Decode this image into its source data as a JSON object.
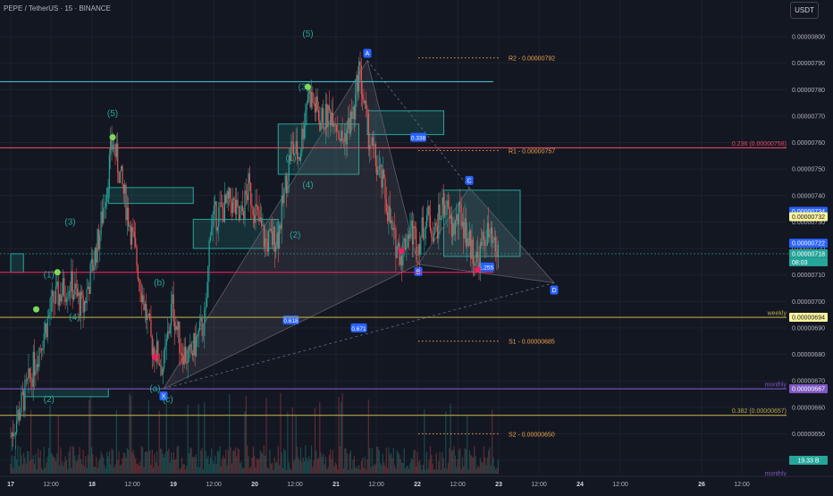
{
  "header": {
    "symbol_title": "PEPE / TetherUS · 15 · BINANCE",
    "currency_button": "USDT"
  },
  "colors": {
    "background": "#131722",
    "up_candle": "#26a69a",
    "down_candle": "#ef5350",
    "wave_label": "#26a69a",
    "harmonic_fill": "#2a2e39",
    "pivot_dots": "#89a0b8"
  },
  "chart_data": {
    "type": "candlestick",
    "price_axis": {
      "min": 6.4e-06,
      "max": 8e-06,
      "ticks": [
        "0.00000800",
        "0.00000790",
        "0.00000780",
        "0.00000770",
        "0.00000760",
        "0.00000750",
        "0.00000740",
        "0.00000730",
        "0.00000720",
        "0.00000710",
        "0.00000700",
        "0.00000690",
        "0.00000680",
        "0.00000670",
        "0.00000660",
        "0.00000650",
        "0.00000640"
      ]
    },
    "time_axis": {
      "labels": [
        "17",
        "12:00",
        "18",
        "12:00",
        "19",
        "12:00",
        "20",
        "12:00",
        "21",
        "12:00",
        "22",
        "12:00",
        "23",
        "12:00",
        "24",
        "12:00",
        "26",
        "12:00"
      ],
      "bold_labels": [
        "17",
        "18",
        "19",
        "20",
        "21",
        "22",
        "23",
        "24",
        "26"
      ]
    },
    "price_path": [
      [
        0,
        6.49e-06
      ],
      [
        4,
        6.68e-06
      ],
      [
        10,
        7e-06
      ],
      [
        14,
        7.07e-06
      ],
      [
        17,
        6.97e-06
      ],
      [
        21,
        7.26e-06
      ],
      [
        24,
        7.61e-06
      ],
      [
        28,
        7.3e-06
      ],
      [
        33,
        6.85e-06
      ],
      [
        36,
        6.75e-06
      ],
      [
        38,
        6.99e-06
      ],
      [
        40,
        6.83e-06
      ],
      [
        42,
        6.78e-06
      ],
      [
        46,
        6.94e-06
      ],
      [
        47,
        7.3e-06
      ],
      [
        52,
        7.38e-06
      ],
      [
        54,
        7.3e-06
      ],
      [
        56,
        7.43e-06
      ],
      [
        60,
        7.22e-06
      ],
      [
        63,
        7.25e-06
      ],
      [
        66,
        7.58e-06
      ],
      [
        68,
        7.55e-06
      ],
      [
        70,
        7.8e-06
      ],
      [
        73,
        7.68e-06
      ],
      [
        76,
        7.72e-06
      ],
      [
        78,
        7.6e-06
      ],
      [
        81,
        7.72e-06
      ],
      [
        82,
        7.89e-06
      ],
      [
        84,
        7.65e-06
      ],
      [
        86,
        7.52e-06
      ],
      [
        88,
        7.42e-06
      ],
      [
        90,
        7.24e-06
      ],
      [
        92,
        7.18e-06
      ],
      [
        94,
        7.28e-06
      ],
      [
        96,
        7.22e-06
      ],
      [
        98,
        7.32e-06
      ],
      [
        100,
        7.26e-06
      ],
      [
        102,
        7.38e-06
      ],
      [
        104,
        7.27e-06
      ],
      [
        106,
        7.33e-06
      ],
      [
        108,
        7.22e-06
      ],
      [
        110,
        7.15e-06
      ],
      [
        112,
        7.26e-06
      ],
      [
        114,
        7.19e-06
      ],
      [
        115,
        7.18e-06
      ]
    ],
    "horizontal_levels": [
      {
        "price": 7.92e-06,
        "label": "R2 - 0.00000792",
        "color": "#f0a04b",
        "style": "dotted"
      },
      {
        "price": 7.57e-06,
        "label": "R1 - 0.00000757",
        "color": "#f0a04b",
        "style": "dotted"
      },
      {
        "price": 6.85e-06,
        "label": "S1 - 0.00000685",
        "color": "#f0a04b",
        "style": "dotted"
      },
      {
        "price": 6.5e-06,
        "label": "S2 - 0.00000650",
        "color": "#f0a04b",
        "style": "dotted"
      },
      {
        "price": 7.83e-06,
        "label": "",
        "color": "#4dd0e1",
        "style": "solid"
      },
      {
        "price": 7.58e-06,
        "label": "0.236 (0.00000758)",
        "color": "#e04a5f",
        "style": "solid"
      },
      {
        "price": 7.11e-06,
        "label": "",
        "color": "#e91e63",
        "style": "solid"
      },
      {
        "price": 6.94e-06,
        "label": "weekly",
        "color": "#b7a64a",
        "style": "solid"
      },
      {
        "price": 6.67e-06,
        "label": "monthly",
        "color": "#7e57c2",
        "style": "solid"
      },
      {
        "price": 6.57e-06,
        "label": "0.382 (0.00000657)",
        "color": "#b7a64a",
        "style": "solid"
      }
    ],
    "price_badges": [
      {
        "price": 7.34e-06,
        "text": "0.00000734",
        "bg": "#2962ff",
        "fg": "#ffffff"
      },
      {
        "price": 7.32e-06,
        "text": "0.00000732",
        "bg": "#fff59d",
        "fg": "#131722"
      },
      {
        "price": 7.22e-06,
        "text": "0.00000722",
        "bg": "#2962ff",
        "fg": "#ffffff"
      },
      {
        "price": 7.18e-06,
        "text": "0.00000718",
        "bg": "#26a69a",
        "fg": "#ffffff"
      },
      {
        "price": 6.94e-06,
        "text": "0.00000694",
        "bg": "#fff59d",
        "fg": "#131722"
      },
      {
        "price": 6.67e-06,
        "text": "0.00000667",
        "bg": "#7e57c2",
        "fg": "#ffffff"
      },
      {
        "price": 6.4e-06,
        "text": "19.33 B",
        "bg": "#26a69a",
        "fg": "#ffffff"
      }
    ],
    "countdown": "08:03",
    "volume_label": "monthly",
    "wave_labels": [
      {
        "text": "(5)",
        "t": 24,
        "p": 7.7e-06
      },
      {
        "text": "(5)",
        "t": 70,
        "p": 8e-06
      },
      {
        "text": "(3)",
        "t": 69,
        "p": 7.8e-06
      },
      {
        "text": "(3)",
        "t": 14,
        "p": 7.29e-06
      },
      {
        "text": "(1)",
        "t": 9,
        "p": 7.09e-06
      },
      {
        "text": "(4)",
        "t": 15,
        "p": 6.93e-06
      },
      {
        "text": "(2)",
        "t": 9,
        "p": 6.62e-06
      },
      {
        "text": "(b)",
        "t": 35,
        "p": 7.06e-06
      },
      {
        "text": "(a)",
        "t": 34,
        "p": 6.66e-06
      },
      {
        "text": "(c)",
        "t": 37,
        "p": 6.62e-06
      },
      {
        "text": "(1)",
        "t": 66,
        "p": 7.53e-06
      },
      {
        "text": "(4)",
        "t": 70,
        "p": 7.43e-06
      },
      {
        "text": "(2)",
        "t": 67,
        "p": 7.24e-06
      }
    ],
    "harmonic_points": [
      {
        "name": "X",
        "t": 36,
        "p": 6.67e-06
      },
      {
        "name": "A",
        "t": 84,
        "p": 7.91e-06
      },
      {
        "name": "B",
        "t": 96,
        "p": 7.14e-06
      },
      {
        "name": "C",
        "t": 108,
        "p": 7.43e-06
      },
      {
        "name": "D",
        "t": 128,
        "p": 7.07e-06
      }
    ],
    "ratio_labels": [
      {
        "text": "0.618",
        "t": 66,
        "p": 6.93e-06
      },
      {
        "text": "0.338",
        "t": 96,
        "p": 7.62e-06
      },
      {
        "text": "0.671",
        "t": 82,
        "p": 6.9e-06
      },
      {
        "text": "1.255",
        "t": 112,
        "p": 7.13e-06
      }
    ],
    "zones": [
      {
        "t1": 23,
        "t2": 43,
        "p1": 7.37e-06,
        "p2": 7.43e-06,
        "color": "#26a69a"
      },
      {
        "t1": 43,
        "t2": 63,
        "p1": 7.2e-06,
        "p2": 7.31e-06,
        "color": "#26a69a"
      },
      {
        "t1": 63,
        "t2": 82,
        "p1": 7.48e-06,
        "p2": 7.67e-06,
        "color": "#26a69a"
      },
      {
        "t1": 84,
        "t2": 102,
        "p1": 7.63e-06,
        "p2": 7.72e-06,
        "color": "#26a69a"
      },
      {
        "t1": 102,
        "t2": 120,
        "p1": 7.17e-06,
        "p2": 7.42e-06,
        "color": "#26a69a"
      },
      {
        "t1": 0,
        "t2": 3,
        "p1": 7.11e-06,
        "p2": 7.18e-06,
        "color": "#26a69a"
      },
      {
        "t1": 3,
        "t2": 23,
        "p1": 6.64e-06,
        "p2": 6.67e-06,
        "color": "#26a69a"
      }
    ]
  }
}
